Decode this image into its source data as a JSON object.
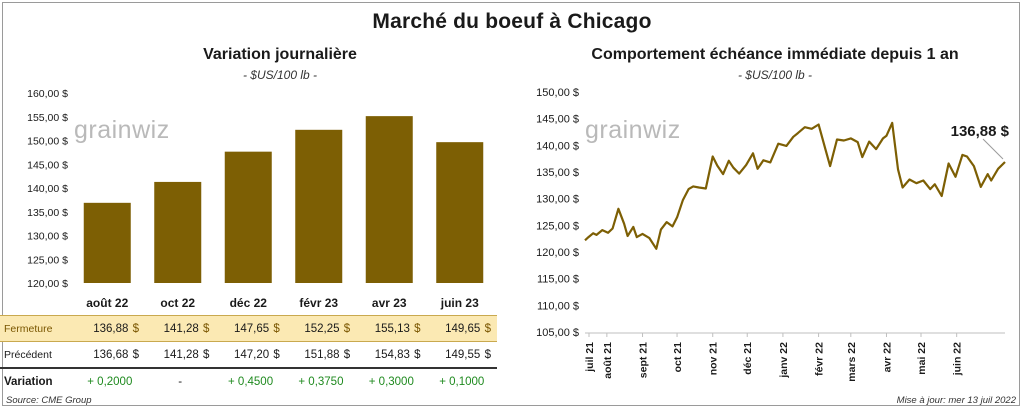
{
  "title": "Marché du boeuf à Chicago",
  "left": {
    "title": "Variation  journalière",
    "unit": "- $US/100 lb -",
    "logo": "grainwiz"
  },
  "right": {
    "title": "Comportement  échéance immédiate depuis 1 an",
    "unit": "- $US/100 lb -",
    "logo": "grainwiz",
    "last_label": "136,88 $"
  },
  "table": {
    "rows": [
      {
        "label": "Fermeture",
        "cells": [
          [
            "136,88",
            "$"
          ],
          [
            "141,28",
            "$"
          ],
          [
            "147,65",
            "$"
          ],
          [
            "152,25",
            "$"
          ],
          [
            "155,13",
            "$"
          ],
          [
            "149,65",
            "$"
          ]
        ]
      },
      {
        "label": "Précédent",
        "cells": [
          [
            "136,68",
            "$"
          ],
          [
            "141,28",
            "$"
          ],
          [
            "147,20",
            "$"
          ],
          [
            "151,88",
            "$"
          ],
          [
            "154,83",
            "$"
          ],
          [
            "149,55",
            "$"
          ]
        ]
      }
    ],
    "variation": {
      "label": "Variation",
      "values": [
        "+ 0,2000",
        "-",
        "+ 0,4500",
        "+ 0,3750",
        "+ 0,3000",
        "+ 0,1000"
      ]
    }
  },
  "footer": {
    "source": "Source: CME Group",
    "updated": "Mise à jour: mer 13 juil 2022"
  },
  "colors": {
    "bar": "#7d5f04",
    "line": "#7d5f04",
    "highlight": "#fbe9b3"
  },
  "chart_data": [
    {
      "type": "bar",
      "title": "Variation  journalière",
      "subtitle": "- $US/100 lb -",
      "categories": [
        "août 22",
        "oct 22",
        "déc 22",
        "févr 23",
        "avr 23",
        "juin 23"
      ],
      "values": [
        136.88,
        141.28,
        147.65,
        152.25,
        155.13,
        149.65
      ],
      "ylim": [
        120,
        160
      ],
      "yticks": [
        120,
        125,
        130,
        135,
        140,
        145,
        150,
        155,
        160
      ],
      "ytick_labels": [
        "120,00 $",
        "125,00 $",
        "130,00 $",
        "135,00 $",
        "140,00 $",
        "145,00 $",
        "150,00 $",
        "155,00 $",
        "160,00 $"
      ],
      "grid": false
    },
    {
      "type": "line",
      "title": "Comportement  échéance immédiate depuis 1 an",
      "subtitle": "- $US/100 lb -",
      "ylim": [
        105,
        150
      ],
      "yticks": [
        105,
        110,
        115,
        120,
        125,
        130,
        135,
        140,
        145,
        150
      ],
      "ytick_labels": [
        "105,00 $",
        "110,00 $",
        "115,00 $",
        "120,00 $",
        "125,00 $",
        "130,00 $",
        "135,00 $",
        "140,00 $",
        "145,00 $",
        "150,00 $"
      ],
      "x_ticks": [
        "juil 21",
        "août 21",
        "sept 21",
        "oct 21",
        "nov 21",
        "déc 21",
        "janv 22",
        "févr 22",
        "mars 22",
        "avr 22",
        "mai 22",
        "juin 22"
      ],
      "x_start": "2021-07-13",
      "x_end": "2022-07-13",
      "x_tick_dates": [
        "2021-07-01",
        "2021-08-01",
        "2021-09-01",
        "2021-10-01",
        "2021-11-01",
        "2021-12-01",
        "2022-01-01",
        "2022-02-01",
        "2022-03-01",
        "2022-04-01",
        "2022-05-01",
        "2022-06-01"
      ],
      "series": [
        {
          "x": [
            "2021-07-13",
            "2021-07-16",
            "2021-07-20",
            "2021-07-23",
            "2021-07-28",
            "2021-08-02",
            "2021-08-06",
            "2021-08-11",
            "2021-08-16",
            "2021-08-19",
            "2021-08-24",
            "2021-08-27",
            "2021-09-01",
            "2021-09-07",
            "2021-09-13",
            "2021-09-17",
            "2021-09-22",
            "2021-09-27",
            "2021-10-01",
            "2021-10-06",
            "2021-10-11",
            "2021-10-15",
            "2021-10-20",
            "2021-10-26",
            "2021-11-01",
            "2021-11-05",
            "2021-11-10",
            "2021-11-15",
            "2021-11-19",
            "2021-11-24",
            "2021-11-30",
            "2021-12-06",
            "2021-12-10",
            "2021-12-15",
            "2021-12-21",
            "2021-12-28",
            "2022-01-04",
            "2022-01-10",
            "2022-01-14",
            "2022-01-20",
            "2022-01-26",
            "2022-02-01",
            "2022-02-07",
            "2022-02-11",
            "2022-02-17",
            "2022-02-23",
            "2022-03-01",
            "2022-03-07",
            "2022-03-11",
            "2022-03-17",
            "2022-03-23",
            "2022-03-29",
            "2022-04-01",
            "2022-04-06",
            "2022-04-11",
            "2022-04-15",
            "2022-04-21",
            "2022-04-27",
            "2022-05-03",
            "2022-05-09",
            "2022-05-13",
            "2022-05-19",
            "2022-05-25",
            "2022-05-31",
            "2022-06-06",
            "2022-06-10",
            "2022-06-16",
            "2022-06-22",
            "2022-06-28",
            "2022-07-01",
            "2022-07-07",
            "2022-07-13"
          ],
          "y": [
            122.2,
            122.8,
            123.5,
            123.2,
            124.1,
            123.6,
            124.4,
            128.1,
            125.3,
            123.0,
            124.7,
            122.8,
            123.4,
            122.6,
            120.6,
            124.2,
            125.6,
            124.8,
            126.5,
            129.7,
            131.8,
            132.3,
            132.1,
            131.9,
            137.9,
            136.2,
            134.6,
            137.1,
            135.8,
            134.7,
            136.3,
            138.5,
            135.6,
            137.2,
            136.8,
            140.3,
            139.9,
            141.6,
            142.3,
            143.4,
            143.1,
            143.9,
            139.2,
            136.1,
            141.1,
            140.9,
            141.3,
            140.6,
            137.8,
            140.7,
            139.3,
            141.3,
            141.8,
            144.2,
            135.5,
            132.1,
            133.6,
            132.9,
            133.4,
            131.8,
            132.7,
            130.5,
            136.6,
            134.1,
            138.2,
            137.9,
            136.1,
            132.2,
            134.6,
            133.4,
            135.6,
            136.88
          ]
        }
      ],
      "annotations": [
        "136,88 $"
      ],
      "grid": false
    }
  ]
}
